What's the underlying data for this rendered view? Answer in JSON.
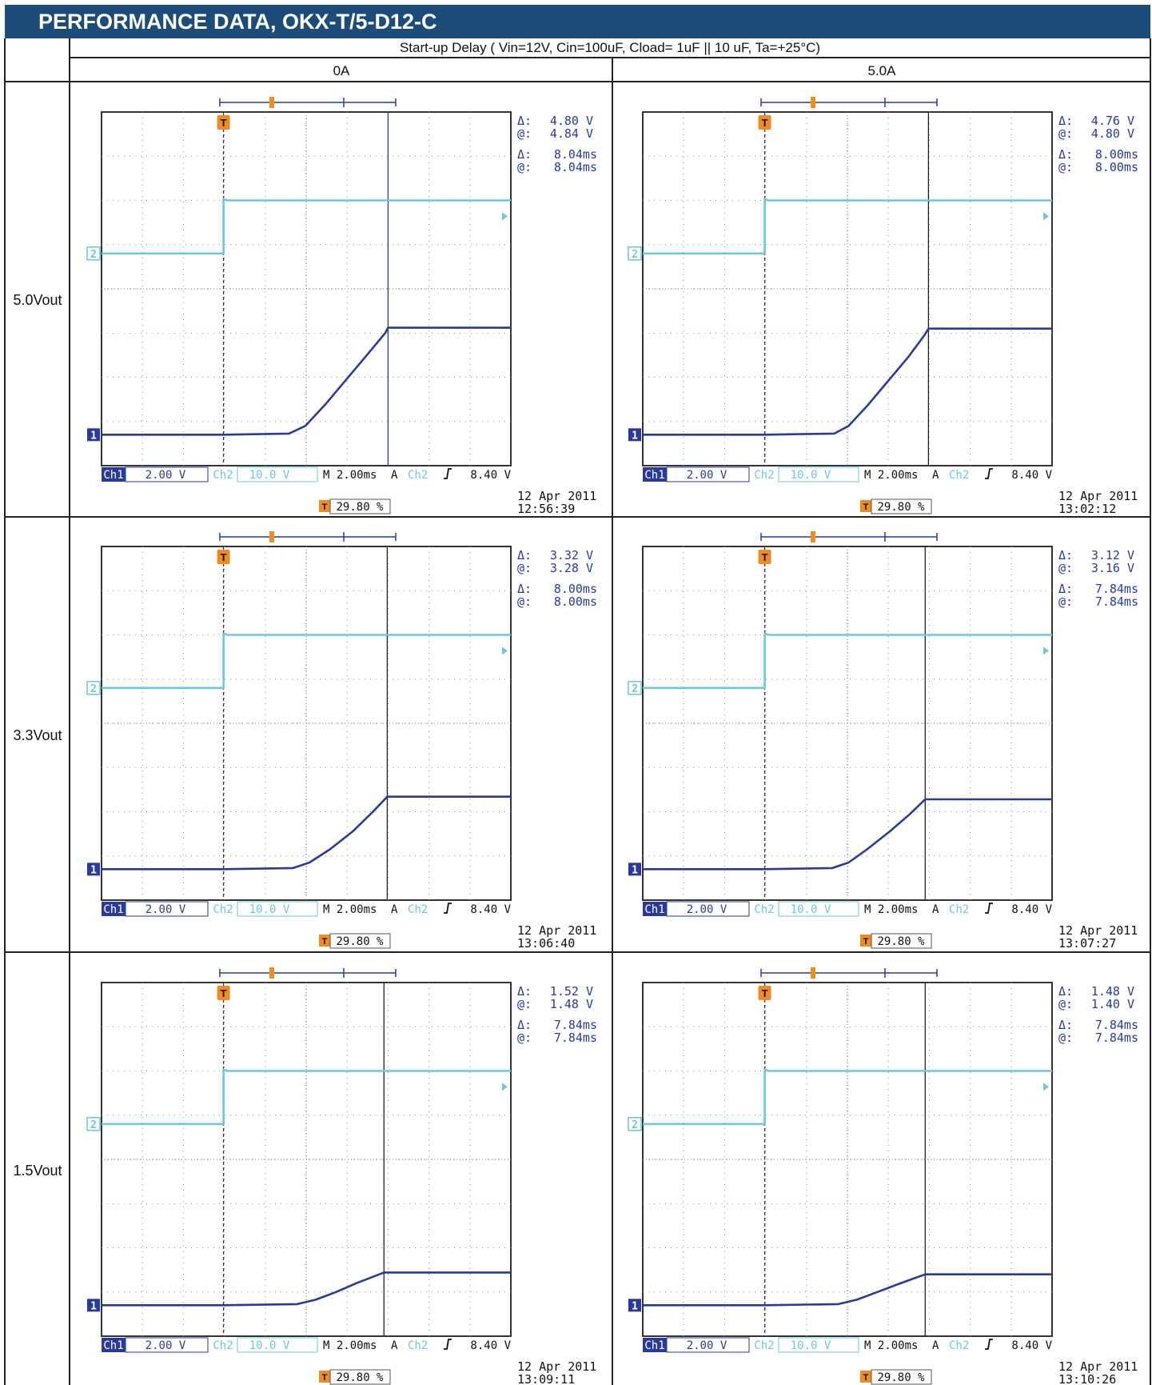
{
  "header": {
    "title": "PERFORMANCE DATA, OKX-T/5-D12-C"
  },
  "table": {
    "subtitle": "Start-up Delay ( Vin=12V, Cin=100uF, Cload= 1uF || 10 uF, Ta=+25°C)",
    "columns": [
      "0A",
      "5.0A"
    ],
    "rows": [
      "5.0Vout",
      "3.3Vout",
      "1.5Vout"
    ]
  },
  "colors": {
    "header_bg": "#1b4c7a",
    "ch1": "#2a3a9c",
    "ch2": "#6cc8dc",
    "trigger": "#f08c1e",
    "grid_border": "#333333"
  },
  "scope_common": {
    "ch1_label": "Ch1",
    "ch1_scale": "2.00 V",
    "ch2_label": "Ch2",
    "ch2_scale": "10.0 V",
    "timebase": "M 2.00ms",
    "trigger_label": "A",
    "trigger_source": "Ch2",
    "trigger_level": "8.40 V",
    "trigger_pos": "29.80 %",
    "delta_label": "Δ:",
    "at_label": "@:",
    "ch1_marker": "1",
    "ch2_marker": "2",
    "trigger_marker": "T"
  },
  "chart_data": [
    {
      "type": "line",
      "row": "5.0Vout",
      "column": "0A",
      "xlabel": "M 2.00ms/div",
      "ylabel": "Ch1 2.00 V/div, Ch2 10.0 V/div",
      "x_range_ms": [
        -5.96,
        14.04
      ],
      "cursor_delta_v": "4.80 V",
      "cursor_at_v": "4.84 V",
      "cursor_delta_t": "8.04ms",
      "cursor_at_t": "8.04ms",
      "date": "12 Apr 2011",
      "time": "12:56:39",
      "series": [
        {
          "name": "Ch1",
          "x_ms": [
            -5.96,
            0,
            3.2,
            4.0,
            5.0,
            6.0,
            7.0,
            7.9,
            8.04,
            14.04
          ],
          "y_v": [
            0,
            0,
            0.05,
            0.4,
            1.4,
            2.5,
            3.6,
            4.6,
            4.84,
            4.84
          ]
        },
        {
          "name": "Ch2",
          "x_ms": [
            -5.96,
            0,
            0,
            0.2,
            14.04
          ],
          "y_v": [
            0,
            0,
            12.3,
            12,
            12
          ]
        }
      ]
    },
    {
      "type": "line",
      "row": "5.0Vout",
      "column": "5.0A",
      "xlabel": "M 2.00ms/div",
      "ylabel": "Ch1 2.00 V/div, Ch2 10.0 V/div",
      "x_range_ms": [
        -5.96,
        14.04
      ],
      "cursor_delta_v": "4.76 V",
      "cursor_at_v": "4.80 V",
      "cursor_delta_t": "8.00ms",
      "cursor_at_t": "8.00ms",
      "date": "12 Apr 2011",
      "time": "13:02:12",
      "series": [
        {
          "name": "Ch1",
          "x_ms": [
            -5.96,
            0,
            3.4,
            4.1,
            5.0,
            6.0,
            7.0,
            7.8,
            8.0,
            14.04
          ],
          "y_v": [
            0,
            0,
            0.05,
            0.4,
            1.3,
            2.4,
            3.5,
            4.5,
            4.8,
            4.8
          ]
        },
        {
          "name": "Ch2",
          "x_ms": [
            -5.96,
            0,
            0,
            0.2,
            14.04
          ],
          "y_v": [
            0,
            0,
            12.3,
            12,
            12
          ]
        }
      ]
    },
    {
      "type": "line",
      "row": "3.3Vout",
      "column": "0A",
      "xlabel": "M 2.00ms/div",
      "ylabel": "Ch1 2.00 V/div, Ch2 10.0 V/div",
      "x_range_ms": [
        -5.96,
        14.04
      ],
      "cursor_delta_v": "3.32 V",
      "cursor_at_v": "3.28 V",
      "cursor_delta_t": "8.00ms",
      "cursor_at_t": "8.00ms",
      "date": "12 Apr 2011",
      "time": "13:06:40",
      "series": [
        {
          "name": "Ch1",
          "x_ms": [
            -5.96,
            0,
            3.4,
            4.2,
            5.2,
            6.3,
            7.3,
            8.0,
            14.04
          ],
          "y_v": [
            0,
            0,
            0.05,
            0.3,
            0.9,
            1.7,
            2.6,
            3.28,
            3.28
          ]
        },
        {
          "name": "Ch2",
          "x_ms": [
            -5.96,
            0,
            0,
            0.2,
            14.04
          ],
          "y_v": [
            0,
            0,
            12.3,
            12,
            12
          ]
        }
      ]
    },
    {
      "type": "line",
      "row": "3.3Vout",
      "column": "5.0A",
      "xlabel": "M 2.00ms/div",
      "ylabel": "Ch1 2.00 V/div, Ch2 10.0 V/div",
      "x_range_ms": [
        -5.96,
        14.04
      ],
      "cursor_delta_v": "3.12 V",
      "cursor_at_v": "3.16 V",
      "cursor_delta_t": "7.84ms",
      "cursor_at_t": "7.84ms",
      "date": "12 Apr 2011",
      "time": "13:07:27",
      "series": [
        {
          "name": "Ch1",
          "x_ms": [
            -5.96,
            0,
            3.3,
            4.1,
            5.0,
            6.1,
            7.1,
            7.84,
            14.04
          ],
          "y_v": [
            0,
            0,
            0.05,
            0.3,
            0.9,
            1.7,
            2.5,
            3.16,
            3.16
          ]
        },
        {
          "name": "Ch2",
          "x_ms": [
            -5.96,
            0,
            0,
            0.2,
            14.04
          ],
          "y_v": [
            0,
            0,
            12.3,
            12,
            12
          ]
        }
      ]
    },
    {
      "type": "line",
      "row": "1.5Vout",
      "column": "0A",
      "xlabel": "M 2.00ms/div",
      "ylabel": "Ch1 2.00 V/div, Ch2 10.0 V/div",
      "x_range_ms": [
        -5.96,
        14.04
      ],
      "cursor_delta_v": "1.52 V",
      "cursor_at_v": "1.48 V",
      "cursor_delta_t": "7.84ms",
      "cursor_at_t": "7.84ms",
      "date": "12 Apr 2011",
      "time": "13:09:11",
      "series": [
        {
          "name": "Ch1",
          "x_ms": [
            -5.96,
            0,
            3.6,
            4.5,
            5.5,
            6.5,
            7.84,
            14.04
          ],
          "y_v": [
            0,
            0,
            0.05,
            0.25,
            0.6,
            1.0,
            1.48,
            1.48
          ]
        },
        {
          "name": "Ch2",
          "x_ms": [
            -5.96,
            0,
            0,
            0.2,
            14.04
          ],
          "y_v": [
            0,
            0,
            12.3,
            12,
            12
          ]
        }
      ]
    },
    {
      "type": "line",
      "row": "1.5Vout",
      "column": "5.0A",
      "xlabel": "M 2.00ms/div",
      "ylabel": "Ch1 2.00 V/div, Ch2 10.0 V/div",
      "x_range_ms": [
        -5.96,
        14.04
      ],
      "cursor_delta_v": "1.48 V",
      "cursor_at_v": "1.40 V",
      "cursor_delta_t": "7.84ms",
      "cursor_at_t": "7.84ms",
      "date": "12 Apr 2011",
      "time": "13:10:26",
      "series": [
        {
          "name": "Ch1",
          "x_ms": [
            -5.96,
            0,
            3.6,
            4.5,
            5.5,
            6.5,
            7.84,
            14.04
          ],
          "y_v": [
            0,
            0,
            0.05,
            0.25,
            0.6,
            0.95,
            1.4,
            1.4
          ]
        },
        {
          "name": "Ch2",
          "x_ms": [
            -5.96,
            0,
            0,
            0.2,
            14.04
          ],
          "y_v": [
            0,
            0,
            12.3,
            12,
            12
          ]
        }
      ]
    }
  ]
}
